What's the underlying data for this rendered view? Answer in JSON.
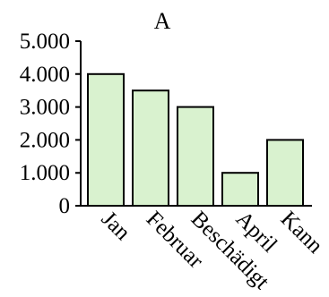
{
  "chart_data": {
    "type": "bar",
    "title": "A",
    "categories": [
      "Jan",
      "Februar",
      "Beschädigt",
      "April",
      "Kann"
    ],
    "values": [
      4000,
      3500,
      3000,
      1000,
      2000
    ],
    "ylim": [
      0,
      5000
    ],
    "yticks": [
      0,
      1000,
      2000,
      3000,
      4000,
      5000
    ],
    "ytick_labels": [
      "0",
      "1.000",
      "2.000",
      "3.000",
      "4.000",
      "5.000"
    ],
    "xlabel": "",
    "ylabel": "",
    "grid": false,
    "legend": "none",
    "bar_color": "#d9f2cf",
    "bar_edge_color": "#000000",
    "x_tick_label_rotation": 45
  }
}
